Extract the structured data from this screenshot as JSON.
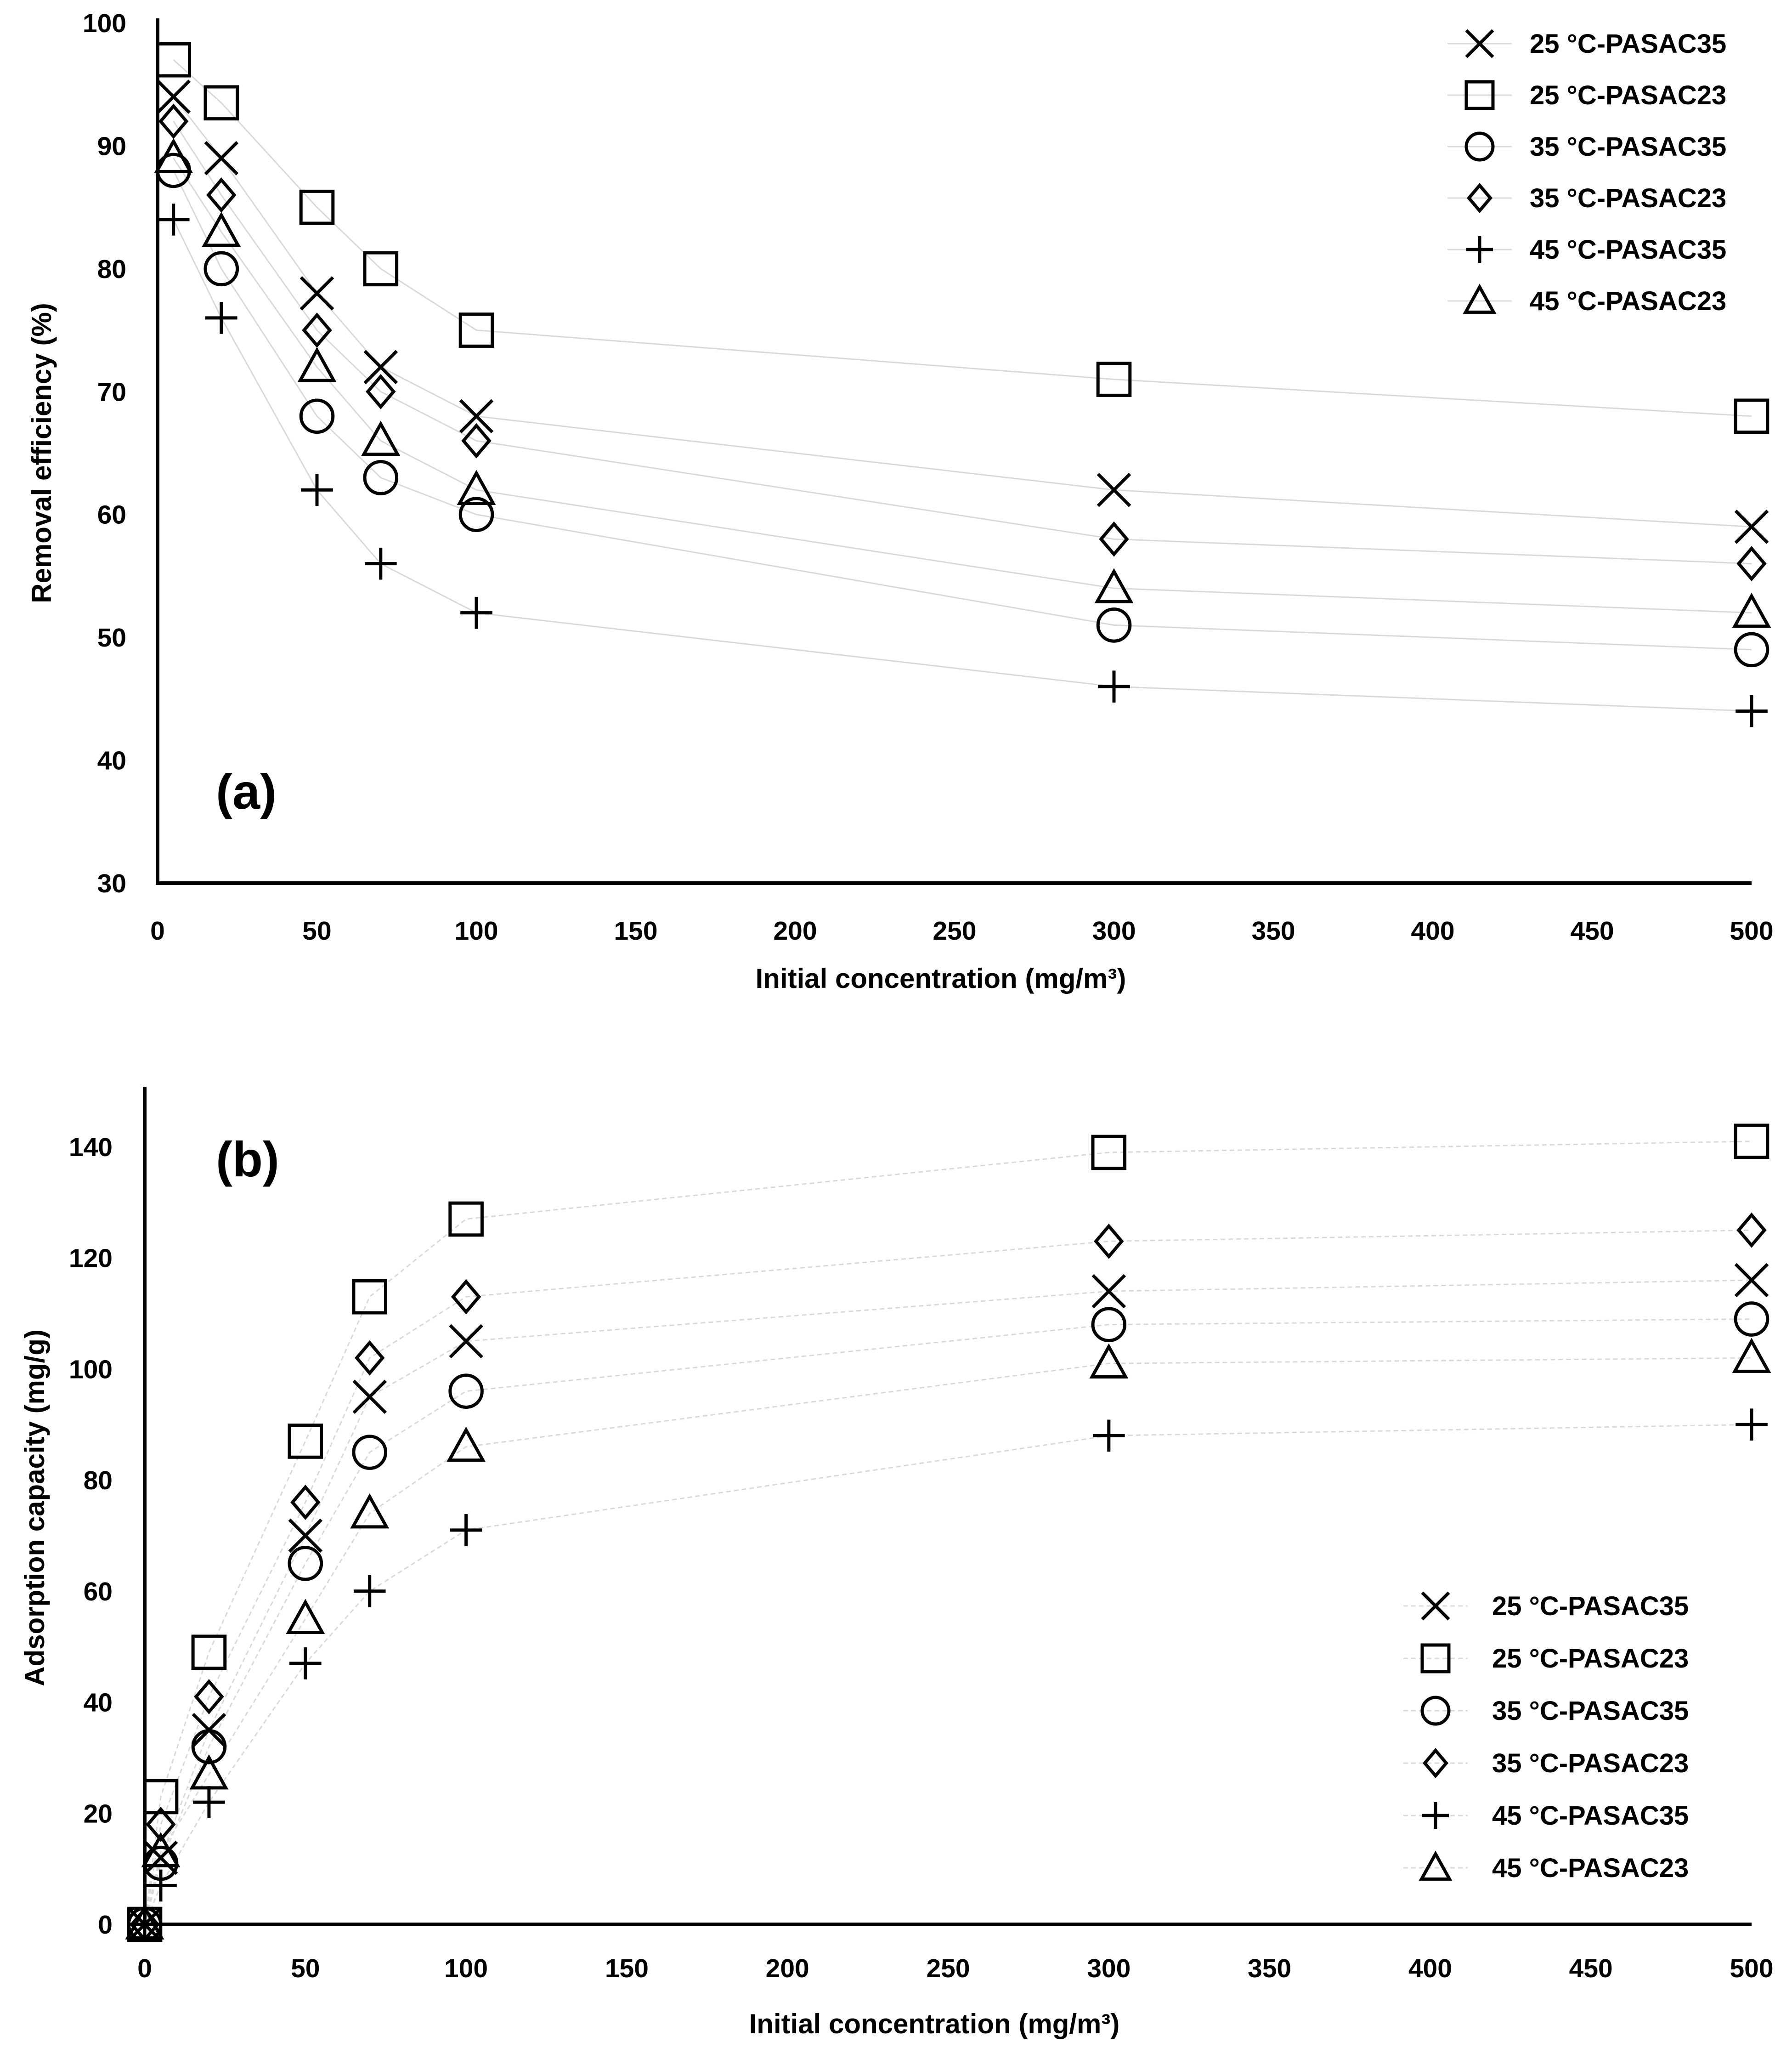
{
  "chart_data": [
    {
      "type": "scatter",
      "panel_label": "(a)",
      "xlabel": "Initial concentration (mg/m³)",
      "ylabel": "Removal efficiency (%)",
      "xlim": [
        0,
        500
      ],
      "ylim": [
        30,
        100
      ],
      "x_ticks": [
        "0",
        "50",
        "100",
        "150",
        "200",
        "250",
        "300",
        "350",
        "400",
        "450",
        "500"
      ],
      "y_ticks": [
        "30",
        "40",
        "50",
        "60",
        "70",
        "80",
        "90",
        "100"
      ],
      "grid": false,
      "line_style": "solid",
      "legend_position": "top-right",
      "x": [
        5,
        20,
        50,
        70,
        100,
        300,
        500
      ],
      "series": [
        {
          "name": "25 °C-PASAC35",
          "marker": "x",
          "values": [
            94,
            89,
            78,
            72,
            68,
            62,
            59
          ]
        },
        {
          "name": "25 °C-PASAC23",
          "marker": "square",
          "values": [
            97,
            93.5,
            85,
            80,
            75,
            71,
            68
          ]
        },
        {
          "name": "35 °C-PASAC35",
          "marker": "circle",
          "values": [
            88,
            80,
            68,
            63,
            60,
            51,
            49
          ]
        },
        {
          "name": "35 °C-PASAC23",
          "marker": "diamond",
          "values": [
            92,
            86,
            75,
            70,
            66,
            58,
            56
          ]
        },
        {
          "name": "45 °C-PASAC35",
          "marker": "plus",
          "values": [
            84,
            76,
            62,
            56,
            52,
            46,
            44
          ]
        },
        {
          "name": "45 °C-PASAC23",
          "marker": "triangle",
          "values": [
            89,
            83,
            72,
            66,
            62,
            54,
            52
          ]
        }
      ]
    },
    {
      "type": "scatter",
      "panel_label": "(b)",
      "xlabel": "Initial concentration (mg/m³)",
      "ylabel": "Adsorption capacity  (mg/g)",
      "xlim": [
        0,
        500
      ],
      "ylim": [
        0,
        150
      ],
      "x_ticks": [
        "0",
        "50",
        "100",
        "150",
        "200",
        "250",
        "300",
        "350",
        "400",
        "450",
        "500"
      ],
      "y_ticks": [
        "0",
        "20",
        "40",
        "60",
        "80",
        "100",
        "120",
        "140"
      ],
      "grid": false,
      "line_style": "dashed",
      "legend_position": "bottom-right",
      "x": [
        0,
        5,
        20,
        50,
        70,
        100,
        300,
        500
      ],
      "series": [
        {
          "name": "25 °C-PASAC35",
          "marker": "x",
          "values": [
            0,
            12,
            35,
            70,
            95,
            105,
            114,
            116
          ]
        },
        {
          "name": "25 °C-PASAC23",
          "marker": "square",
          "values": [
            0,
            23,
            49,
            87,
            113,
            127,
            139,
            141
          ]
        },
        {
          "name": "35 °C-PASAC35",
          "marker": "circle",
          "values": [
            0,
            11,
            32,
            65,
            85,
            96,
            108,
            109
          ]
        },
        {
          "name": "35 °C-PASAC23",
          "marker": "diamond",
          "values": [
            0,
            18,
            41,
            76,
            102,
            113,
            123,
            125
          ]
        },
        {
          "name": "45 °C-PASAC35",
          "marker": "plus",
          "values": [
            0,
            7,
            22,
            47,
            60,
            71,
            88,
            90
          ]
        },
        {
          "name": "45 °C-PASAC23",
          "marker": "triangle",
          "values": [
            0,
            13,
            27,
            55,
            74,
            86,
            101,
            102
          ]
        }
      ]
    }
  ]
}
